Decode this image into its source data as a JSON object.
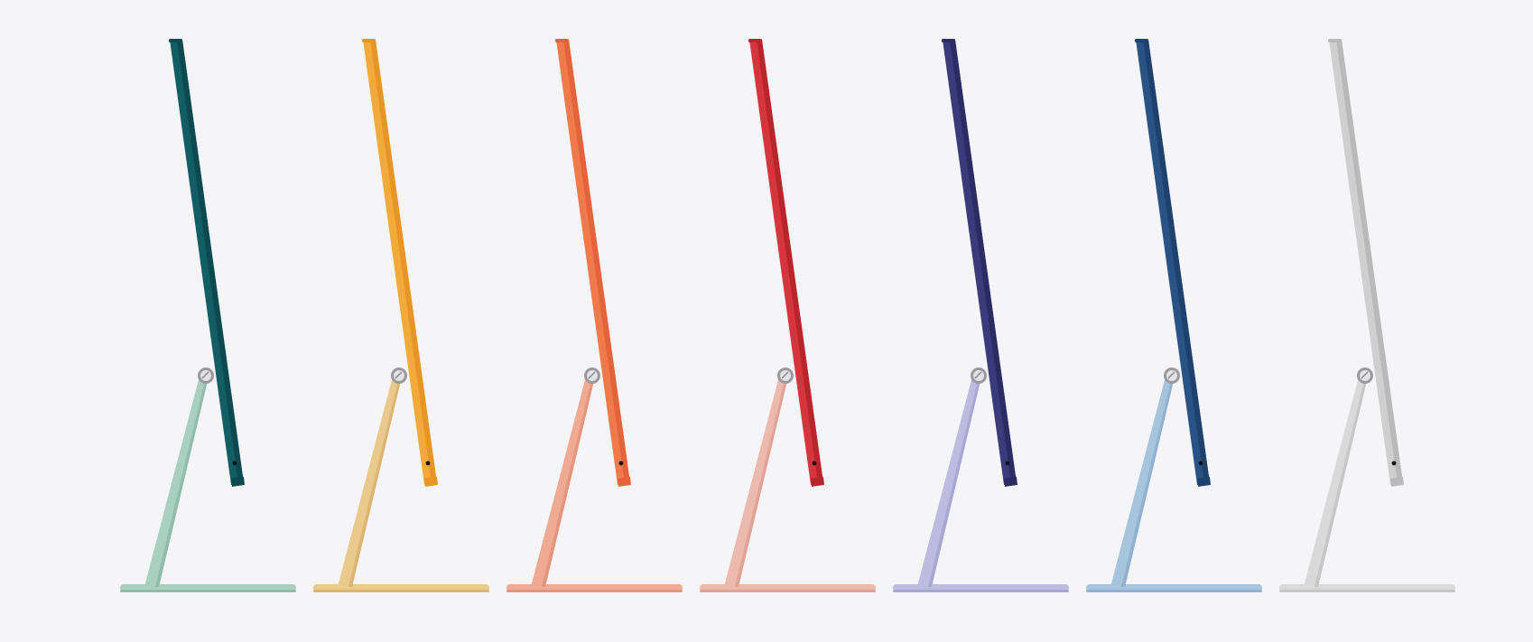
{
  "scene": {
    "background": "#f5f5f7",
    "models": [
      {
        "color_name": "green",
        "display": "#135e64",
        "display_dark": "#0c4a4f",
        "stand": "#a8cfc0",
        "stand_dark": "#8fbcab"
      },
      {
        "color_name": "yellow",
        "display": "#f2aa3b",
        "display_dark": "#e79525",
        "stand": "#eac98d",
        "stand_dark": "#dcb572"
      },
      {
        "color_name": "orange",
        "display": "#f07a4c",
        "display_dark": "#e3633a",
        "stand": "#eeaa92",
        "stand_dark": "#e4957b"
      },
      {
        "color_name": "red",
        "display": "#d5363d",
        "display_dark": "#b9252d",
        "stand": "#ecb9ae",
        "stand_dark": "#e1a397"
      },
      {
        "color_name": "purple",
        "display": "#3a3b7a",
        "display_dark": "#2b2c63",
        "stand": "#bcbbe0",
        "stand_dark": "#a8a7d3"
      },
      {
        "color_name": "blue",
        "display": "#2a5385",
        "display_dark": "#1e426d",
        "stand": "#a7c4dd",
        "stand_dark": "#90b2d0"
      },
      {
        "color_name": "silver",
        "display": "#cfcfcf",
        "display_dark": "#b9b9b9",
        "stand": "#d9d9d9",
        "stand_dark": "#c6c6c6"
      }
    ]
  }
}
